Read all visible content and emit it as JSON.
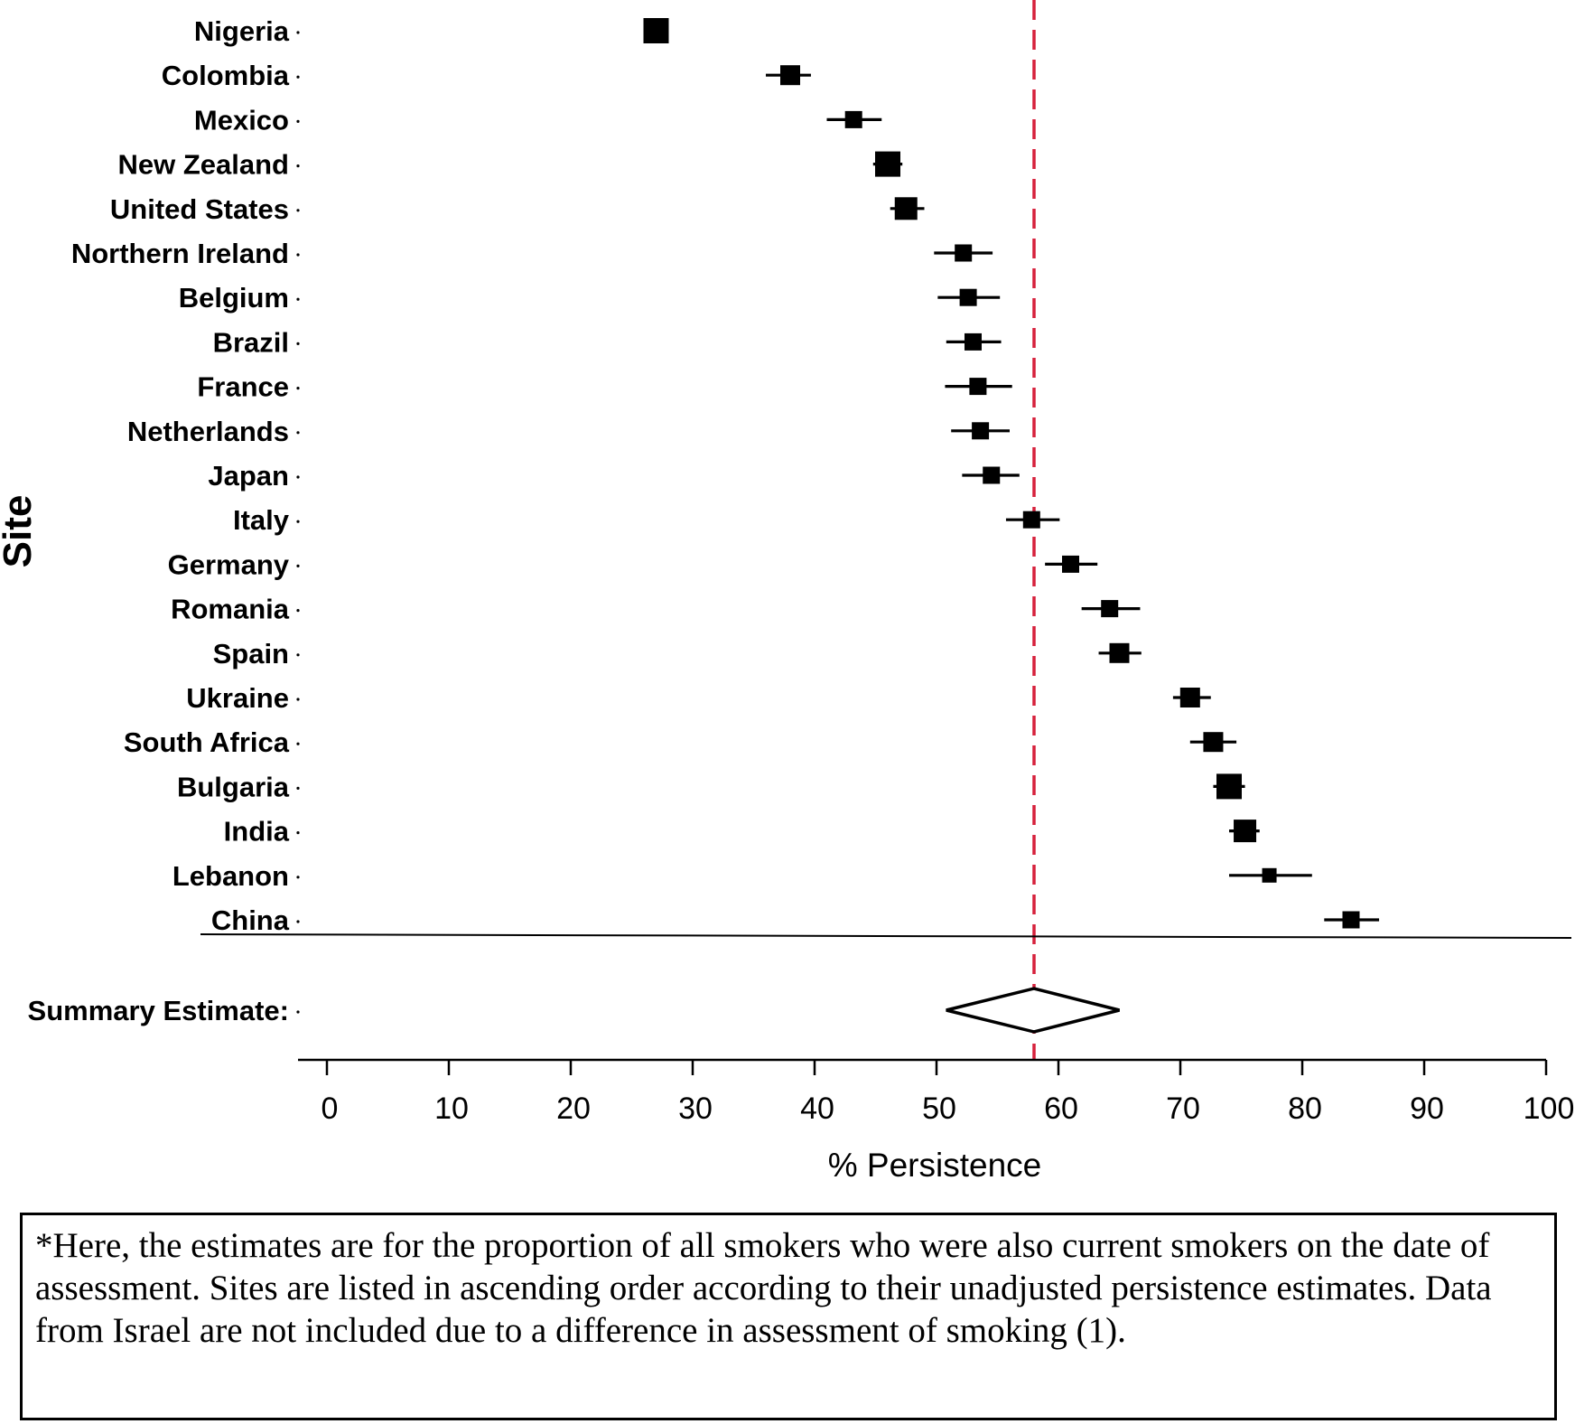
{
  "chart_data": {
    "type": "forest",
    "xlabel": "% Persistence",
    "ylabel": "Site",
    "xlim": [
      0,
      100
    ],
    "xticks": [
      0,
      10,
      20,
      30,
      40,
      50,
      60,
      70,
      80,
      90,
      100
    ],
    "reference_line": {
      "value": 58,
      "style": "dashed",
      "color": "#d6203c"
    },
    "sites": [
      {
        "name": "Nigeria",
        "estimate": 27.0,
        "lower": 26.0,
        "upper": 28.0,
        "weight": 3
      },
      {
        "name": "Colombia",
        "estimate": 38.0,
        "lower": 36.0,
        "upper": 39.7,
        "weight": 2
      },
      {
        "name": "Mexico",
        "estimate": 43.2,
        "lower": 41.0,
        "upper": 45.5,
        "weight": 1.5
      },
      {
        "name": "New Zealand",
        "estimate": 46.0,
        "lower": 44.8,
        "upper": 47.2,
        "weight": 3
      },
      {
        "name": "United States",
        "estimate": 47.5,
        "lower": 46.2,
        "upper": 49.0,
        "weight": 2.5
      },
      {
        "name": "Northern Ireland",
        "estimate": 52.2,
        "lower": 49.8,
        "upper": 54.6,
        "weight": 1.5
      },
      {
        "name": "Belgium",
        "estimate": 52.6,
        "lower": 50.1,
        "upper": 55.2,
        "weight": 1.5
      },
      {
        "name": "Brazil",
        "estimate": 53.0,
        "lower": 50.8,
        "upper": 55.3,
        "weight": 1.5
      },
      {
        "name": "France",
        "estimate": 53.4,
        "lower": 50.7,
        "upper": 56.2,
        "weight": 1.5
      },
      {
        "name": "Netherlands",
        "estimate": 53.6,
        "lower": 51.2,
        "upper": 56.0,
        "weight": 1.5
      },
      {
        "name": "Japan",
        "estimate": 54.5,
        "lower": 52.1,
        "upper": 56.8,
        "weight": 1.5
      },
      {
        "name": "Italy",
        "estimate": 57.8,
        "lower": 55.7,
        "upper": 60.1,
        "weight": 1.5
      },
      {
        "name": "Germany",
        "estimate": 61.0,
        "lower": 58.9,
        "upper": 63.2,
        "weight": 1.5
      },
      {
        "name": "Romania",
        "estimate": 64.2,
        "lower": 61.9,
        "upper": 66.7,
        "weight": 1.5
      },
      {
        "name": "Spain",
        "estimate": 65.0,
        "lower": 63.3,
        "upper": 66.8,
        "weight": 2
      },
      {
        "name": "Ukraine",
        "estimate": 70.8,
        "lower": 69.4,
        "upper": 72.5,
        "weight": 2
      },
      {
        "name": "South Africa",
        "estimate": 72.7,
        "lower": 70.8,
        "upper": 74.6,
        "weight": 2
      },
      {
        "name": "Bulgaria",
        "estimate": 74.0,
        "lower": 72.7,
        "upper": 75.3,
        "weight": 3
      },
      {
        "name": "India",
        "estimate": 75.3,
        "lower": 74.0,
        "upper": 76.5,
        "weight": 2.5
      },
      {
        "name": "Lebanon",
        "estimate": 77.3,
        "lower": 74.0,
        "upper": 80.8,
        "weight": 1
      },
      {
        "name": "China",
        "estimate": 84.0,
        "lower": 81.8,
        "upper": 86.3,
        "weight": 1.5
      }
    ],
    "summary": {
      "label": "Summary Estimate:",
      "estimate": 58.0,
      "lower": 50.8,
      "upper": 65.0
    }
  },
  "footnote": "*Here, the estimates are for the proportion of all smokers who were also current smokers on the date of assessment. Sites are listed in ascending order according to their unadjusted persistence estimates. Data from Israel are not included due to a difference in assessment of smoking (1)."
}
